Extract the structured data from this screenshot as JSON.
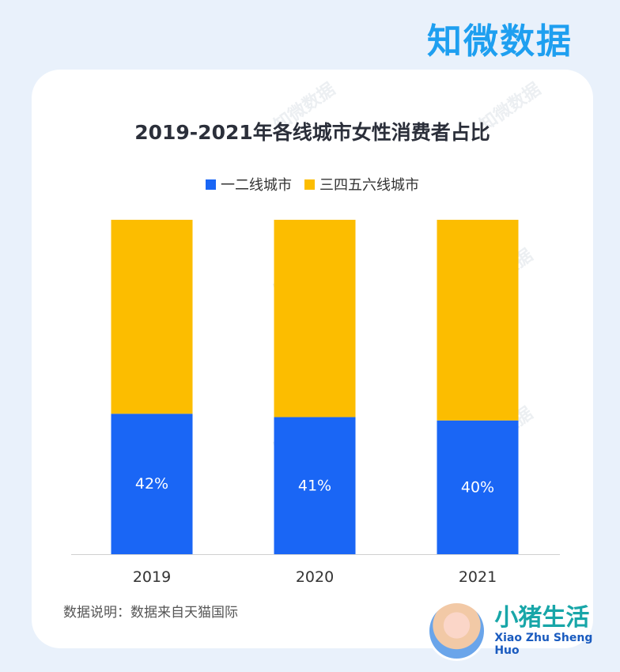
{
  "brand": "知微数据",
  "watermark_text": "知微数据",
  "footer_note": "数据说明：数据来自天猫国际",
  "badge": {
    "title": "小猪生活",
    "subtitle": "Xiao Zhu Sheng Huo"
  },
  "colors": {
    "series1": "#1a66f5",
    "series2": "#fcbd00",
    "brand": "#1e9ff0"
  },
  "chart_data": {
    "type": "bar",
    "stacked": true,
    "title": "2019-2021年各线城市女性消费者占比",
    "categories": [
      "2019",
      "2020",
      "2021"
    ],
    "series": [
      {
        "name": "一二线城市",
        "values": [
          42,
          41,
          40
        ],
        "labels": [
          "42%",
          "41%",
          "40%"
        ]
      },
      {
        "name": "三四五六线城市",
        "values": [
          58,
          59,
          60
        ]
      }
    ],
    "ylim": [
      0,
      100
    ],
    "legend": "top-center",
    "grid": false
  }
}
